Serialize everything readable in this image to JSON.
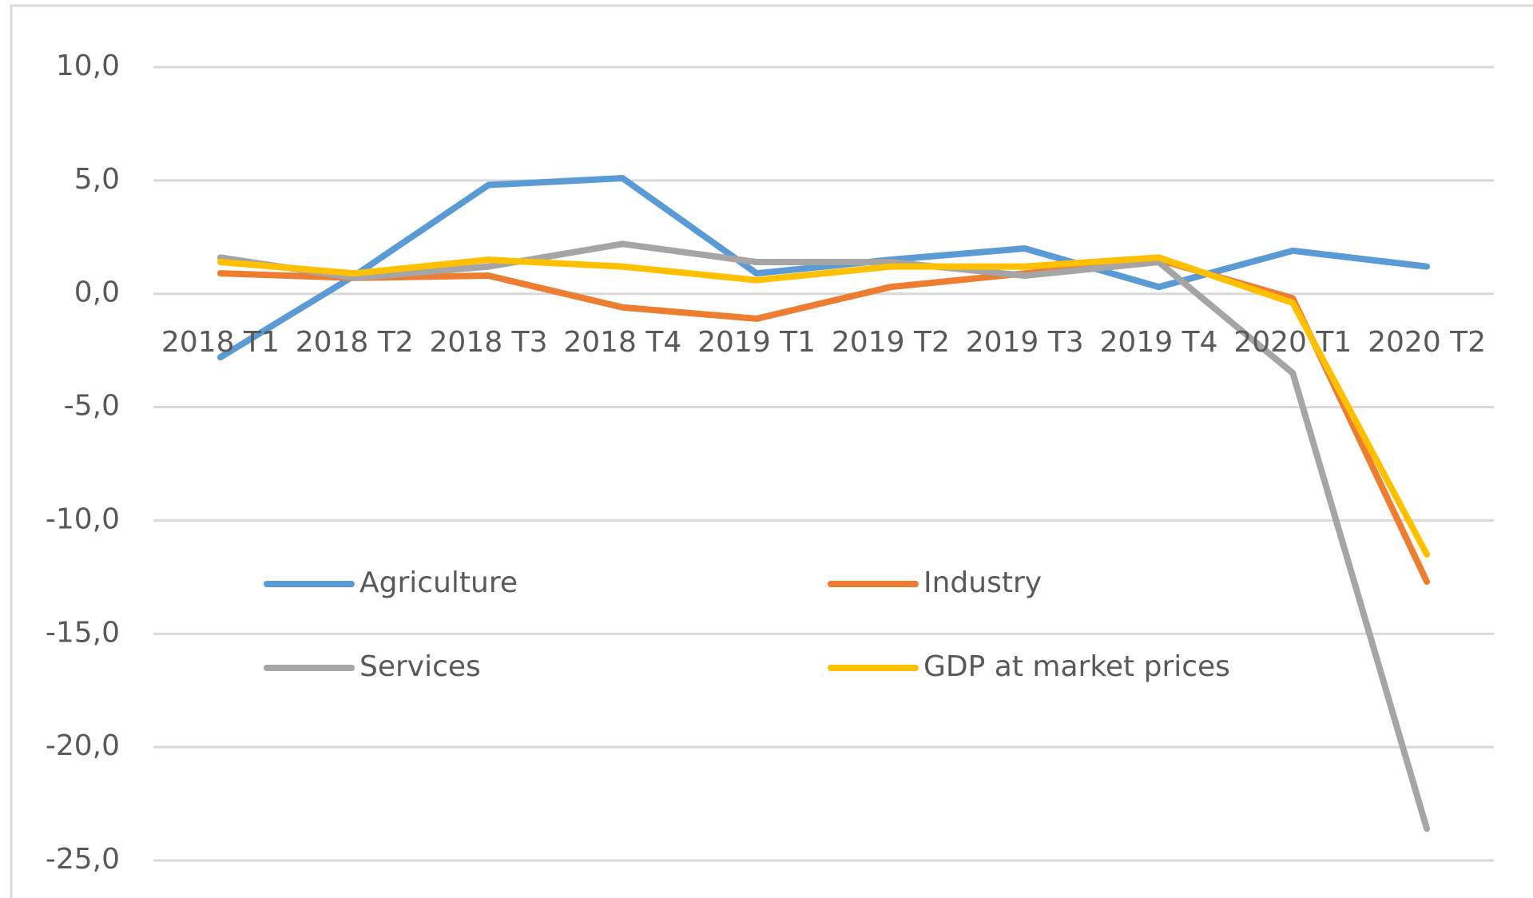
{
  "chart_data": {
    "type": "line",
    "categories": [
      "2018 T1",
      "2018 T2",
      "2018 T3",
      "2018 T4",
      "2019 T1",
      "2019 T2",
      "2019 T3",
      "2019 T4",
      "2020 T1",
      "2020 T2"
    ],
    "series": [
      {
        "name": "Agriculture",
        "color": "#5b9bd5",
        "values": [
          -2.8,
          0.8,
          4.8,
          5.1,
          0.9,
          1.5,
          2.0,
          0.3,
          1.9,
          1.2
        ]
      },
      {
        "name": "Industry",
        "color": "#ed7d31",
        "values": [
          0.9,
          0.7,
          0.8,
          -0.6,
          -1.1,
          0.3,
          0.9,
          1.5,
          -0.2,
          -12.7
        ]
      },
      {
        "name": "Services",
        "color": "#a5a5a5",
        "values": [
          1.6,
          0.7,
          1.2,
          2.2,
          1.4,
          1.4,
          0.8,
          1.4,
          -3.5,
          -23.6
        ]
      },
      {
        "name": "GDP at market prices",
        "color": "#ffc000",
        "values": [
          1.4,
          0.9,
          1.5,
          1.2,
          0.6,
          1.2,
          1.2,
          1.6,
          -0.4,
          -11.5
        ]
      }
    ],
    "ylim": [
      -25,
      10
    ],
    "yticks": [
      {
        "value": -25,
        "label": "-25,0"
      },
      {
        "value": -20,
        "label": "-20,0"
      },
      {
        "value": -15,
        "label": "-15,0"
      },
      {
        "value": -10,
        "label": "-10,0"
      },
      {
        "value": -5,
        "label": "-5,0"
      },
      {
        "value": 0,
        "label": "0,0"
      },
      {
        "value": 5,
        "label": "5,0"
      },
      {
        "value": 10,
        "label": "10,0"
      }
    ],
    "grid": true
  }
}
